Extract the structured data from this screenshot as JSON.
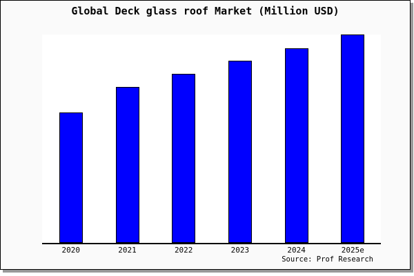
{
  "chart_data": {
    "type": "bar",
    "title": "Global Deck glass roof Market (Million USD)",
    "categories": [
      "2020",
      "2021",
      "2022",
      "2023",
      "2024",
      "2025e"
    ],
    "values": [
      189,
      226,
      245,
      264,
      282,
      302
    ],
    "value_note": "y-axis has no tick labels; values are relative bar heights in pixels measured from the axis baseline",
    "xlabel": "",
    "ylabel": "",
    "grid": false,
    "legend_position": "none",
    "bar_color": "#0000ff",
    "bar_border_color": "#000000",
    "axis_color": "#000000",
    "background_color": "#fafafa",
    "plot_background_color": "#ffffff",
    "shadow_color": "#999999",
    "source": "Source: Prof Research"
  }
}
